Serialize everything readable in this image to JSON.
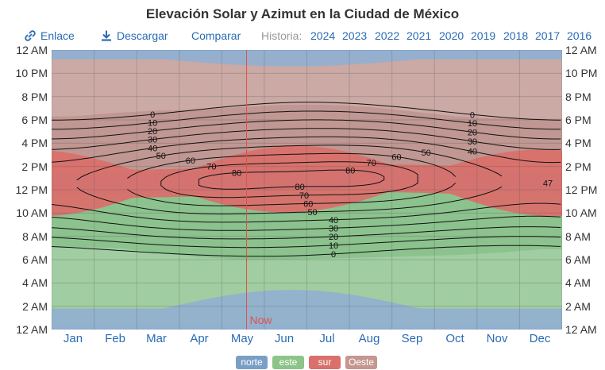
{
  "chart_data": {
    "type": "area",
    "title": "Elevación Solar y Azimut en la Ciudad de México",
    "y_tick_labels": [
      "12 AM",
      "10 PM",
      "8 PM",
      "6 PM",
      "4 PM",
      "2 PM",
      "12 PM",
      "10 AM",
      "8 AM",
      "6 AM",
      "4 AM",
      "2 AM",
      "12 AM"
    ],
    "months": [
      "Jan",
      "Feb",
      "Mar",
      "Apr",
      "May",
      "Jun",
      "Jul",
      "Aug",
      "Sep",
      "Oct",
      "Nov",
      "Dec"
    ],
    "now_label": "Now",
    "now_day": 140,
    "azimuth_series": [
      {
        "name": "norte",
        "color": "#7a9fc6"
      },
      {
        "name": "este",
        "color": "#8dc48a"
      },
      {
        "name": "sur",
        "color": "#d9706c"
      },
      {
        "name": "Oeste",
        "color": "#c4978f"
      }
    ],
    "sunrise_hours_by_month": [
      7.1,
      7.0,
      6.6,
      6.2,
      6.0,
      6.0,
      6.1,
      6.2,
      6.3,
      6.4,
      6.6,
      6.9
    ],
    "sunset_hours_by_month": [
      18.3,
      18.6,
      18.8,
      18.9,
      19.1,
      19.3,
      19.3,
      19.1,
      18.7,
      18.3,
      18.1,
      18.1
    ],
    "elevation_contours_deg": [
      0,
      10,
      20,
      30,
      40,
      50,
      60,
      70,
      80
    ],
    "max_elevation_label": "47",
    "xlim_day": [
      1,
      365
    ],
    "ylim_hours": [
      0,
      24
    ]
  },
  "toolbar": {
    "link_label": "Enlace",
    "download_label": "Descargar",
    "compare_label": "Comparar",
    "history_label": "Historia:",
    "years": [
      "2024",
      "2023",
      "2022",
      "2021",
      "2020",
      "2019",
      "2018",
      "2017",
      "2016"
    ]
  }
}
